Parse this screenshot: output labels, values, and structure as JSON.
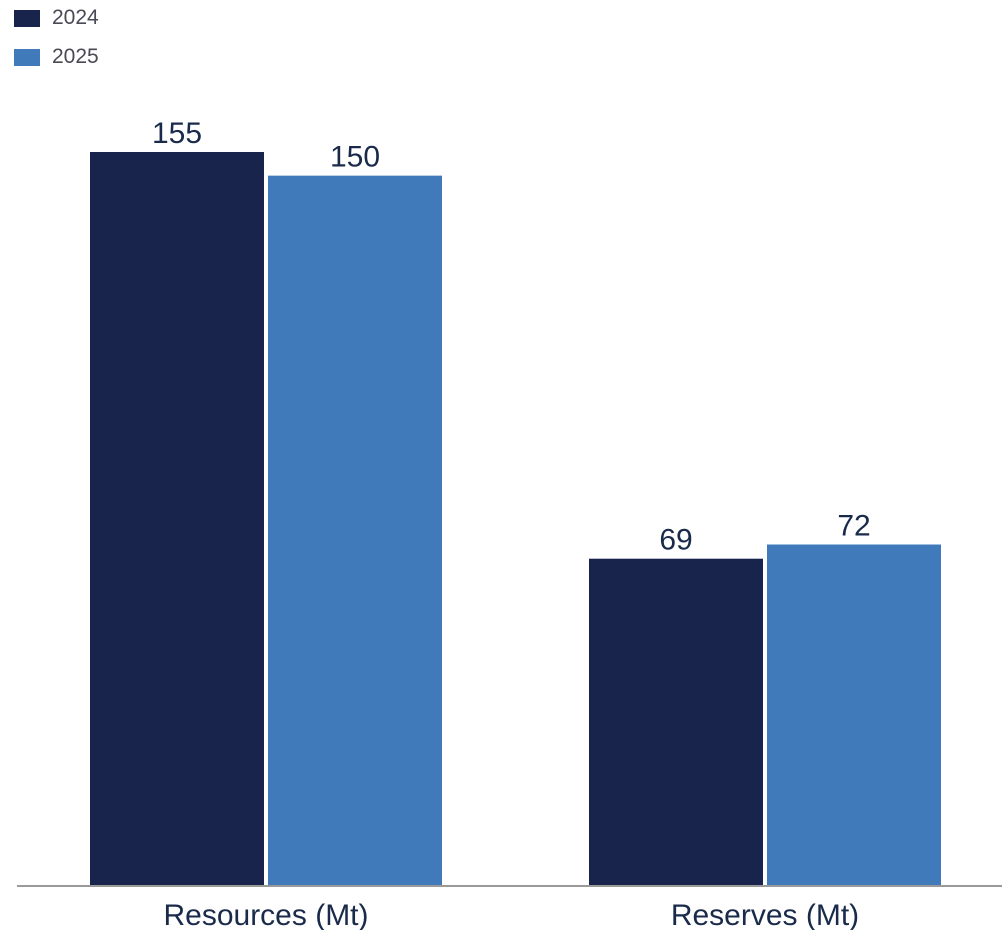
{
  "chart_data": {
    "type": "bar",
    "categories": [
      "Resources (Mt)",
      "Reserves (Mt)"
    ],
    "series": [
      {
        "name": "2024",
        "values": [
          155,
          69
        ],
        "color": "#18244b"
      },
      {
        "name": "2025",
        "values": [
          150,
          72
        ],
        "color": "#417abb"
      }
    ],
    "ylim": [
      0,
      155
    ],
    "grid": false,
    "legend": "top-left",
    "axis_color": "#9a9a9a"
  }
}
